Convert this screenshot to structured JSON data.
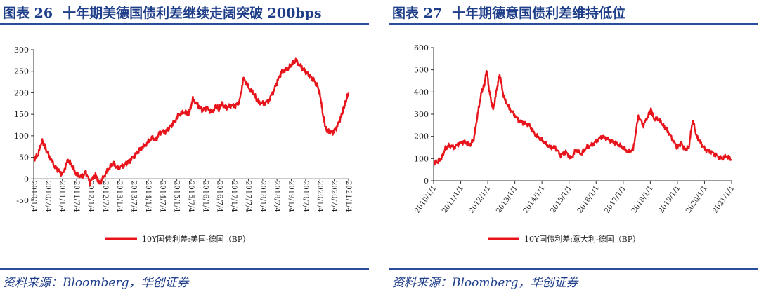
{
  "colors": {
    "series": "#e8141c",
    "title": "#1f3e8a",
    "rule": "#2a4d9c",
    "axis": "#333333"
  },
  "chart_data": [
    {
      "id": "left",
      "figure_label": "图表 26",
      "title": "十年期美德国债利差继续走阔突破 200bps",
      "type": "line",
      "legend": "10Y国债利差:美国-德国（BP）",
      "ylim": [
        -50,
        300
      ],
      "yticks": [
        -50,
        0,
        50,
        100,
        150,
        200,
        250,
        300
      ],
      "xlim": [
        0,
        45.9
      ],
      "xticks": [
        "2010/1/4",
        "2010/7/4",
        "2011/1/4",
        "2011/7/4",
        "2012/1/4",
        "2012/7/4",
        "2013/1/4",
        "2013/7/4",
        "2014/1/4",
        "2014/7/4",
        "2015/1/4",
        "2015/7/4",
        "2016/1/4",
        "2016/7/4",
        "2017/1/4",
        "2017/7/4",
        "2018/1/4",
        "2018/7/4",
        "2019/1/4",
        "2019/7/4",
        "2020/1/4",
        "2020/7/4",
        "2021/1/4"
      ],
      "x": [
        0,
        0.6,
        1.2,
        1.6,
        2.2,
        3.0,
        3.6,
        4.2,
        5.0,
        5.6,
        6.2,
        7.0,
        7.6,
        8.2,
        9.0,
        9.6,
        10.2,
        11.0,
        11.6,
        12.2,
        13.0,
        13.6,
        14.2,
        15.0,
        15.6,
        16.4,
        17.2,
        17.8,
        18.4,
        19.2,
        19.8,
        20.4,
        21.2,
        22.0,
        22.6,
        23.2,
        24.0,
        24.6,
        25.2,
        26.0,
        26.6,
        27.0,
        27.4,
        28.0,
        28.6,
        29.4,
        30.0,
        30.6,
        31.4,
        32.2,
        32.6,
        33.4,
        34.2,
        35.0,
        35.6,
        36.2,
        37.0,
        37.6,
        38.2,
        39.0,
        39.6,
        40.2,
        40.8,
        41.4,
        41.8,
        42.2,
        42.6,
        43.0,
        43.6,
        44.2,
        44.8,
        45.2,
        45.5,
        45.9
      ],
      "values": [
        45,
        55,
        88,
        75,
        55,
        30,
        20,
        10,
        45,
        30,
        10,
        5,
        15,
        -8,
        10,
        -12,
        5,
        25,
        35,
        25,
        30,
        38,
        45,
        60,
        70,
        80,
        95,
        90,
        108,
        110,
        120,
        130,
        150,
        155,
        150,
        185,
        170,
        160,
        165,
        155,
        170,
        160,
        175,
        165,
        170,
        170,
        180,
        235,
        210,
        195,
        180,
        175,
        180,
        205,
        230,
        250,
        255,
        265,
        275,
        260,
        250,
        240,
        230,
        215,
        190,
        145,
        115,
        110,
        108,
        120,
        145,
        165,
        180,
        200
      ]
    },
    {
      "id": "right",
      "figure_label": "图表 27",
      "title": "十年期德意国债利差维持低位",
      "type": "line",
      "legend": "10Y国债利差:意大利-德国（BP）",
      "ylim": [
        0,
        600
      ],
      "yticks": [
        0,
        100,
        200,
        300,
        400,
        500,
        600
      ],
      "xlim": [
        0,
        11.5
      ],
      "xticks": [
        "2010/1/1",
        "2011/1/1",
        "2012/1/1",
        "2013/1/1",
        "2014/1/1",
        "2015/1/1",
        "2016/1/1",
        "2017/1/1",
        "2018/1/1",
        "2019/1/1",
        "2020/1/1",
        "2021/1/1"
      ],
      "x": [
        0,
        0.15,
        0.3,
        0.45,
        0.6,
        0.8,
        1.0,
        1.2,
        1.4,
        1.55,
        1.7,
        1.85,
        1.95,
        2.05,
        2.15,
        2.3,
        2.45,
        2.55,
        2.7,
        2.9,
        3.1,
        3.3,
        3.5,
        3.7,
        3.9,
        4.1,
        4.3,
        4.5,
        4.7,
        4.9,
        5.1,
        5.3,
        5.5,
        5.7,
        5.9,
        6.1,
        6.3,
        6.5,
        6.7,
        6.9,
        7.1,
        7.3,
        7.5,
        7.7,
        7.9,
        8.1,
        8.3,
        8.4,
        8.5,
        8.7,
        8.85,
        9.0,
        9.2,
        9.4,
        9.55,
        9.7,
        9.85,
        10.0,
        10.15,
        10.3,
        10.5,
        10.7,
        10.9,
        11.1,
        11.3,
        11.5
      ],
      "values": [
        80,
        85,
        100,
        145,
        160,
        150,
        170,
        175,
        160,
        185,
        300,
        400,
        430,
        500,
        400,
        320,
        420,
        480,
        380,
        330,
        300,
        270,
        260,
        250,
        210,
        190,
        170,
        150,
        150,
        115,
        130,
        100,
        140,
        120,
        150,
        160,
        180,
        200,
        190,
        175,
        165,
        150,
        130,
        140,
        290,
        250,
        300,
        320,
        280,
        275,
        250,
        230,
        190,
        150,
        170,
        140,
        150,
        275,
        200,
        170,
        140,
        130,
        115,
        100,
        110,
        95
      ]
    }
  ],
  "source": "资料来源：Bloomberg，华创证券"
}
